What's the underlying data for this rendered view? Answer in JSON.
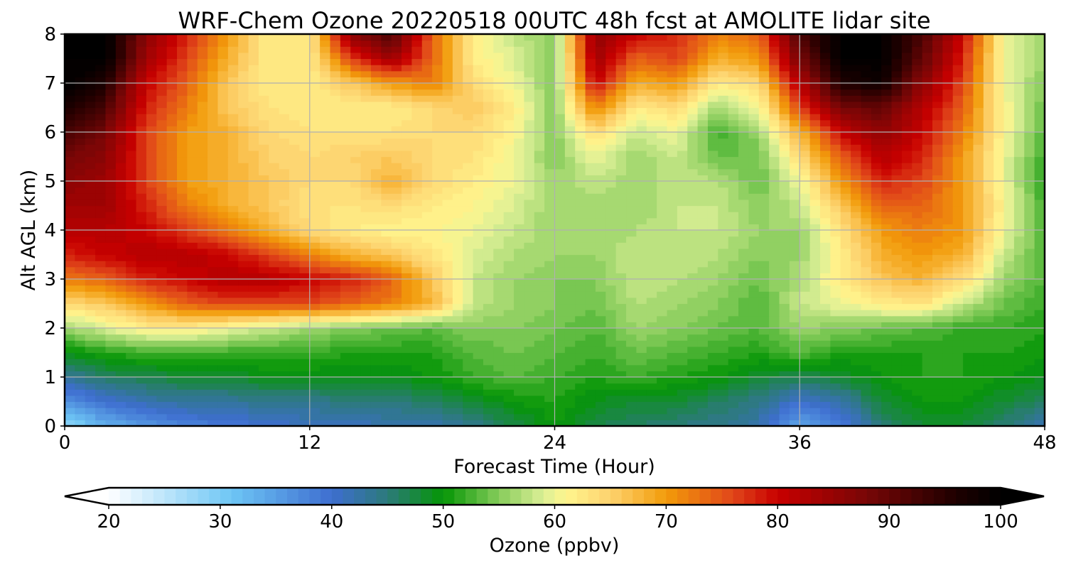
{
  "chart_data": {
    "type": "heatmap",
    "title": "WRF-Chem Ozone  20220518 00UTC 48h fcst at AMOLITE lidar site",
    "xlabel": "Forecast Time (Hour)",
    "ylabel": "Alt AGL (km)",
    "xlim": [
      0,
      48
    ],
    "ylim": [
      0,
      8
    ],
    "xticks": [
      0,
      12,
      24,
      36,
      48
    ],
    "yticks": [
      0,
      1,
      2,
      3,
      4,
      5,
      6,
      7,
      8
    ],
    "grid": true,
    "x": [
      0,
      2,
      4,
      6,
      8,
      10,
      12,
      14,
      16,
      18,
      20,
      22,
      24,
      26,
      28,
      30,
      32,
      34,
      36,
      38,
      40,
      42,
      44,
      46,
      48
    ],
    "y": [
      0,
      0.5,
      1,
      1.5,
      2,
      2.5,
      3,
      3.5,
      4,
      4.5,
      5,
      5.5,
      6,
      6.5,
      7,
      7.5,
      8
    ],
    "z": [
      [
        28,
        33,
        36,
        38,
        39,
        40,
        41,
        41,
        42,
        42,
        44,
        47,
        50,
        47,
        46,
        45,
        44,
        42,
        34,
        38,
        45,
        48,
        48,
        45,
        42
      ],
      [
        36,
        40,
        42,
        43,
        43,
        44,
        44,
        45,
        45,
        46,
        48,
        50,
        51,
        49,
        48,
        48,
        46,
        44,
        40,
        42,
        48,
        50,
        50,
        48,
        46
      ],
      [
        43,
        46,
        47,
        48,
        48,
        49,
        49,
        49,
        49,
        50,
        52,
        53,
        52,
        51,
        52,
        51,
        50,
        48,
        47,
        48,
        50,
        51,
        51,
        50,
        49
      ],
      [
        49,
        51,
        52,
        52,
        52,
        52,
        52,
        51,
        51,
        51,
        53,
        54,
        53,
        52,
        54,
        53,
        52,
        51,
        53,
        51,
        51,
        51,
        51,
        51,
        50
      ],
      [
        56,
        59,
        62,
        62,
        60,
        58,
        56,
        55,
        54,
        53,
        55,
        55,
        54,
        53,
        56,
        55,
        54,
        53,
        56,
        55,
        54,
        53,
        52,
        52,
        51
      ],
      [
        64,
        66,
        70,
        74,
        76,
        76,
        76,
        74,
        72,
        68,
        58,
        56,
        55,
        54,
        57,
        56,
        55,
        53,
        58,
        60,
        62,
        63,
        58,
        54,
        52
      ],
      [
        72,
        74,
        78,
        80,
        82,
        82,
        80,
        78,
        74,
        66,
        58,
        56,
        55,
        55,
        58,
        57,
        56,
        54,
        57,
        62,
        66,
        68,
        64,
        56,
        53
      ],
      [
        78,
        80,
        82,
        82,
        80,
        76,
        72,
        68,
        66,
        63,
        59,
        57,
        56,
        56,
        58,
        58,
        57,
        55,
        56,
        62,
        68,
        70,
        68,
        58,
        53
      ],
      [
        82,
        82,
        80,
        76,
        72,
        68,
        64,
        62,
        61,
        61,
        60,
        58,
        56,
        56,
        57,
        58,
        58,
        56,
        56,
        63,
        70,
        72,
        70,
        60,
        53
      ],
      [
        84,
        84,
        78,
        72,
        68,
        66,
        63,
        63,
        64,
        62,
        61,
        59,
        56,
        56,
        56,
        58,
        58,
        55,
        58,
        66,
        74,
        74,
        70,
        61,
        52
      ],
      [
        86,
        84,
        76,
        70,
        68,
        66,
        64,
        64,
        68,
        64,
        62,
        60,
        56,
        58,
        56,
        58,
        57,
        54,
        60,
        70,
        78,
        76,
        70,
        60,
        51
      ],
      [
        88,
        86,
        76,
        70,
        68,
        65,
        64,
        65,
        66,
        64,
        63,
        60,
        55,
        60,
        56,
        58,
        54,
        54,
        64,
        74,
        82,
        78,
        70,
        60,
        52
      ],
      [
        92,
        88,
        76,
        70,
        68,
        64,
        63,
        63,
        63,
        64,
        64,
        61,
        55,
        64,
        58,
        60,
        52,
        56,
        68,
        80,
        86,
        80,
        72,
        61,
        53
      ],
      [
        96,
        92,
        78,
        72,
        66,
        63,
        62,
        62,
        62,
        64,
        66,
        62,
        55,
        72,
        62,
        64,
        56,
        60,
        76,
        88,
        90,
        82,
        74,
        61,
        54
      ],
      [
        100,
        96,
        80,
        74,
        66,
        62,
        62,
        66,
        70,
        72,
        64,
        60,
        55,
        80,
        68,
        70,
        62,
        64,
        82,
        96,
        98,
        86,
        76,
        60,
        55
      ],
      [
        100,
        100,
        84,
        76,
        68,
        62,
        62,
        76,
        84,
        74,
        62,
        59,
        55,
        84,
        74,
        76,
        68,
        70,
        88,
        100,
        100,
        90,
        78,
        60,
        56
      ],
      [
        100,
        100,
        86,
        78,
        70,
        62,
        62,
        86,
        92,
        74,
        62,
        58,
        55,
        86,
        80,
        78,
        72,
        74,
        92,
        100,
        100,
        92,
        80,
        60,
        56
      ]
    ],
    "colorbar": {
      "label": "Ozone  (ppbv)",
      "min": 20,
      "max": 100,
      "ticks": [
        20,
        30,
        40,
        50,
        60,
        70,
        80,
        90,
        100
      ],
      "extend": "both",
      "levels": 80,
      "colormap_stops": [
        {
          "value": 20,
          "color": "#ffffff"
        },
        {
          "value": 31,
          "color": "#6ec6f5"
        },
        {
          "value": 40,
          "color": "#3e6ed0"
        },
        {
          "value": 45,
          "color": "#2c7a7a"
        },
        {
          "value": 50,
          "color": "#059605"
        },
        {
          "value": 55,
          "color": "#86cc5a"
        },
        {
          "value": 59,
          "color": "#dcef96"
        },
        {
          "value": 61,
          "color": "#fff58e"
        },
        {
          "value": 65,
          "color": "#fdd26e"
        },
        {
          "value": 70,
          "color": "#f29b0a"
        },
        {
          "value": 76,
          "color": "#e0461a"
        },
        {
          "value": 80,
          "color": "#c80000"
        },
        {
          "value": 88,
          "color": "#780606"
        },
        {
          "value": 96,
          "color": "#1e0000"
        },
        {
          "value": 100,
          "color": "#000000"
        }
      ]
    }
  }
}
